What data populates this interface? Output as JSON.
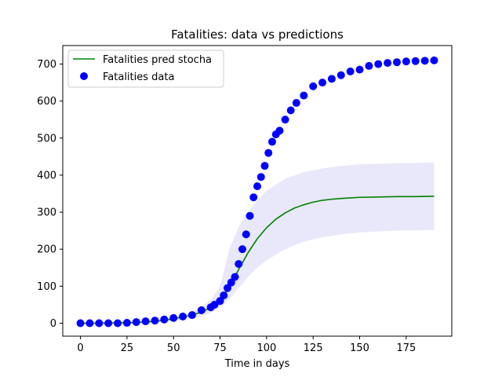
{
  "chart_data": {
    "type": "line",
    "title": "Fatalities: data vs predictions",
    "xlabel": "Time in days",
    "ylabel": "",
    "xlim": [
      -9.5,
      199.5
    ],
    "ylim": [
      -35,
      750
    ],
    "x_ticks": [
      0,
      25,
      50,
      75,
      100,
      125,
      150,
      175
    ],
    "y_ticks": [
      0,
      100,
      200,
      300,
      400,
      500,
      600,
      700
    ],
    "grid": false,
    "legend_position": "top-left",
    "colors": {
      "prediction": "#008000",
      "data": "#0000ff",
      "band": "#e8e8fa"
    },
    "series": [
      {
        "name": "Fatalities pred stocha",
        "kind": "line",
        "x": [
          0,
          10,
          20,
          30,
          40,
          45,
          50,
          55,
          60,
          65,
          70,
          75,
          80,
          85,
          90,
          95,
          100,
          105,
          110,
          115,
          120,
          125,
          130,
          135,
          140,
          150,
          160,
          170,
          180,
          190
        ],
        "y": [
          0,
          0,
          1,
          2,
          5,
          8,
          12,
          17,
          22,
          30,
          42,
          62,
          95,
          145,
          190,
          228,
          258,
          281,
          298,
          311,
          320,
          327,
          332,
          335,
          337,
          340,
          341,
          342,
          342,
          343
        ]
      },
      {
        "name": "Fatalities data",
        "kind": "scatter",
        "x": [
          0,
          5,
          10,
          15,
          20,
          25,
          30,
          35,
          40,
          45,
          50,
          55,
          60,
          65,
          70,
          72,
          75,
          77,
          79,
          81,
          83,
          85,
          87,
          89,
          91,
          93,
          95,
          97,
          99,
          101,
          103,
          105,
          107,
          110,
          113,
          116,
          120,
          125,
          130,
          135,
          140,
          145,
          150,
          155,
          160,
          165,
          170,
          175,
          180,
          185,
          190
        ],
        "y": [
          0,
          0,
          0,
          0,
          0,
          1,
          3,
          5,
          7,
          10,
          14,
          18,
          22,
          35,
          43,
          50,
          60,
          75,
          95,
          110,
          125,
          160,
          200,
          240,
          290,
          340,
          370,
          395,
          425,
          460,
          490,
          510,
          520,
          550,
          575,
          595,
          615,
          640,
          650,
          660,
          670,
          680,
          685,
          695,
          700,
          703,
          705,
          707,
          708,
          709,
          710
        ]
      }
    ],
    "band": {
      "x": [
        0,
        20,
        40,
        50,
        60,
        65,
        70,
        75,
        80,
        85,
        90,
        95,
        100,
        110,
        120,
        130,
        140,
        150,
        160,
        170,
        180,
        190
      ],
      "lower": [
        0,
        0,
        3,
        6,
        12,
        18,
        28,
        42,
        65,
        95,
        125,
        150,
        170,
        200,
        220,
        232,
        240,
        245,
        248,
        250,
        251,
        252
      ],
      "upper": [
        0,
        2,
        8,
        16,
        32,
        45,
        62,
        100,
        200,
        260,
        300,
        332,
        358,
        390,
        408,
        418,
        425,
        429,
        431,
        432,
        433,
        434
      ]
    }
  }
}
